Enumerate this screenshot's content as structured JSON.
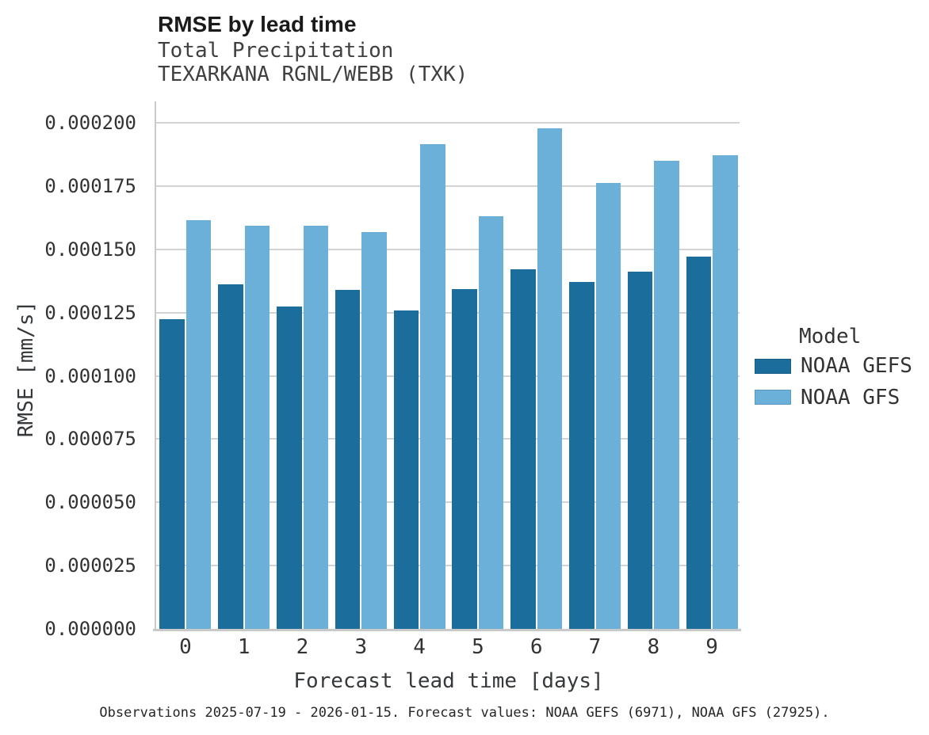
{
  "chart_data": {
    "type": "bar",
    "title": "RMSE by lead time",
    "subtitle1": "Total Precipitation",
    "subtitle2": "TEXARKANA RGNL/WEBB (TXK)",
    "xlabel": "Forecast lead time [days]",
    "ylabel": "RMSE [mm/s]",
    "legend_title": "Model",
    "legend_position": "right",
    "grid": true,
    "caption": "Observations 2025-07-19 - 2026-01-15. Forecast values: NOAA GEFS (6971), NOAA GFS (27925).",
    "categories": [
      "0",
      "1",
      "2",
      "3",
      "4",
      "5",
      "6",
      "7",
      "8",
      "9"
    ],
    "series": [
      {
        "name": "NOAA GEFS",
        "color": "#1b6d9c",
        "values": [
          0.0001225,
          0.0001363,
          0.0001273,
          0.000134,
          0.0001258,
          0.0001342,
          0.000142,
          0.000137,
          0.0001413,
          0.000147
        ]
      },
      {
        "name": "NOAA GFS",
        "color": "#6ab0d8",
        "values": [
          0.0001616,
          0.0001594,
          0.0001594,
          0.0001568,
          0.0001915,
          0.0001632,
          0.0001978,
          0.0001763,
          0.0001851,
          0.0001872
        ]
      }
    ],
    "ylim": [
      0,
      0.000208
    ],
    "yticks": [
      {
        "label": "0.000000",
        "value": 0.0
      },
      {
        "label": "0.000025",
        "value": 2.5e-05
      },
      {
        "label": "0.000050",
        "value": 5e-05
      },
      {
        "label": "0.000075",
        "value": 7.5e-05
      },
      {
        "label": "0.000100",
        "value": 0.0001
      },
      {
        "label": "0.000125",
        "value": 0.000125
      },
      {
        "label": "0.000150",
        "value": 0.00015
      },
      {
        "label": "0.000175",
        "value": 0.000175
      },
      {
        "label": "0.000200",
        "value": 0.0002
      }
    ],
    "colors": {
      "gridline": "#d3d3d3",
      "axis_line": "#c9c9c9",
      "title_text": "#1a1a1a",
      "subtitle_text": "#404040",
      "tick_text": "#333333",
      "caption_text": "#262626"
    }
  }
}
